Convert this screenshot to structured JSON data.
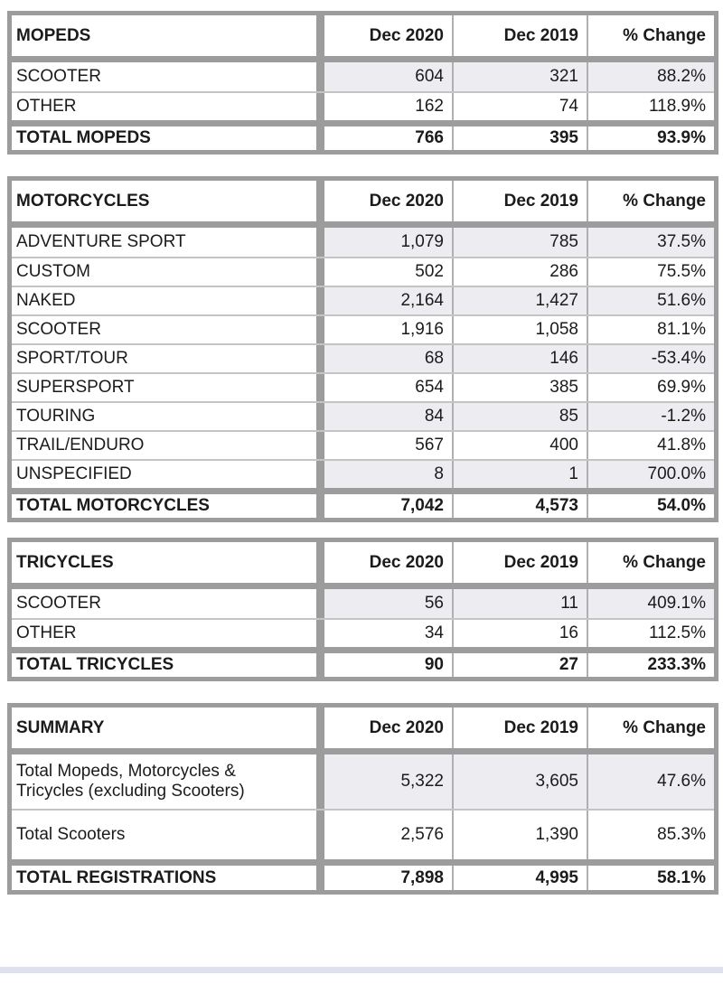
{
  "page": {
    "background_color": "#ffffff",
    "bottom_strip_color": "#dee2ee"
  },
  "columns": [
    "Dec 2020",
    "Dec 2019",
    "% Change"
  ],
  "tables": [
    {
      "title": "MOPEDS",
      "rows": [
        {
          "label": "SCOOTER",
          "dec2020": "604",
          "dec2019": "321",
          "change": "88.2%",
          "shaded": true
        },
        {
          "label": "OTHER",
          "dec2020": "162",
          "dec2019": "74",
          "change": "118.9%",
          "shaded": false
        }
      ],
      "total": {
        "label": "TOTAL MOPEDS",
        "dec2020": "766",
        "dec2019": "395",
        "change": "93.9%"
      }
    },
    {
      "title": "MOTORCYCLES",
      "rows": [
        {
          "label": "ADVENTURE SPORT",
          "dec2020": "1,079",
          "dec2019": "785",
          "change": "37.5%",
          "shaded": true
        },
        {
          "label": "CUSTOM",
          "dec2020": "502",
          "dec2019": "286",
          "change": "75.5%",
          "shaded": false
        },
        {
          "label": "NAKED",
          "dec2020": "2,164",
          "dec2019": "1,427",
          "change": "51.6%",
          "shaded": true
        },
        {
          "label": "SCOOTER",
          "dec2020": "1,916",
          "dec2019": "1,058",
          "change": "81.1%",
          "shaded": false
        },
        {
          "label": "SPORT/TOUR",
          "dec2020": "68",
          "dec2019": "146",
          "change": "-53.4%",
          "shaded": true
        },
        {
          "label": "SUPERSPORT",
          "dec2020": "654",
          "dec2019": "385",
          "change": "69.9%",
          "shaded": false
        },
        {
          "label": "TOURING",
          "dec2020": "84",
          "dec2019": "85",
          "change": "-1.2%",
          "shaded": true
        },
        {
          "label": "TRAIL/ENDURO",
          "dec2020": "567",
          "dec2019": "400",
          "change": "41.8%",
          "shaded": false
        },
        {
          "label": "UNSPECIFIED",
          "dec2020": "8",
          "dec2019": "1",
          "change": "700.0%",
          "shaded": true
        }
      ],
      "total": {
        "label": "TOTAL MOTORCYCLES",
        "dec2020": "7,042",
        "dec2019": "4,573",
        "change": "54.0%"
      }
    },
    {
      "title": "TRICYCLES",
      "rows": [
        {
          "label": "SCOOTER",
          "dec2020": "56",
          "dec2019": "11",
          "change": "409.1%",
          "shaded": true
        },
        {
          "label": "OTHER",
          "dec2020": "34",
          "dec2019": "16",
          "change": "112.5%",
          "shaded": false
        }
      ],
      "total": {
        "label": "TOTAL TRICYCLES",
        "dec2020": "90",
        "dec2019": "27",
        "change": "233.3%"
      }
    },
    {
      "title": "SUMMARY",
      "rows": [
        {
          "label": "Total Mopeds, Motorcycles & Tricycles (excluding Scooters)",
          "dec2020": "5,322",
          "dec2019": "3,605",
          "change": "47.6%",
          "shaded": true
        },
        {
          "label": "Total Scooters",
          "dec2020": "2,576",
          "dec2019": "1,390",
          "change": "85.3%",
          "shaded": false
        }
      ],
      "total": {
        "label": "TOTAL REGISTRATIONS",
        "dec2020": "7,898",
        "dec2019": "4,995",
        "change": "58.1%"
      }
    }
  ]
}
